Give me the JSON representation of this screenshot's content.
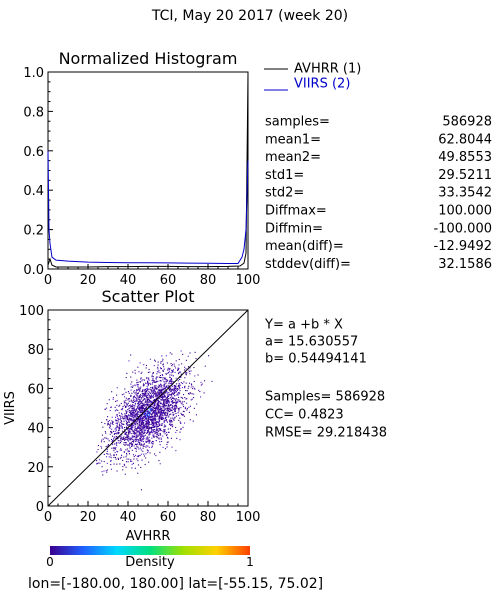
{
  "page_title": "TCI,  May 20 2017 (week 20)",
  "footer": {
    "lon_label": "lon=[",
    "lon_value": "-180.00, 180.00",
    "lat_label": "] lat=[",
    "lat_value": "-55.15, 75.02",
    "close": "]"
  },
  "colors": {
    "avhrr": "#000000",
    "viirs": "#0000cc",
    "frame": "#000000"
  },
  "stats": [
    {
      "label": "samples=",
      "value": "586928"
    },
    {
      "label": "mean1=",
      "value": "62.8044"
    },
    {
      "label": "mean2=",
      "value": "49.8553"
    },
    {
      "label": "std1=",
      "value": "29.5211"
    },
    {
      "label": "std2=",
      "value": "33.3542"
    },
    {
      "label": "Diffmax=",
      "value": "100.000"
    },
    {
      "label": "Diffmin=",
      "value": "-100.000"
    },
    {
      "label": "mean(diff)=",
      "value": "-12.9492"
    },
    {
      "label": "stddev(diff)=",
      "value": "32.1586"
    }
  ],
  "regression": {
    "equation": "Y= a +b * X",
    "a_text": "a= 15.630557",
    "b_text": "b= 0.54494141",
    "samples_text": "Samples= 586928",
    "cc_text": "CC=  0.4823",
    "rmse_text": "RMSE= 29.218438"
  },
  "colorbar": {
    "label": "Density",
    "min_label": "0",
    "max_label": "1",
    "stops": [
      "#3a0090",
      "#2060ff",
      "#00d8ff",
      "#00e080",
      "#a0e000",
      "#ffd000",
      "#ff4000"
    ]
  },
  "chart_data": [
    {
      "type": "line",
      "title": "Normalized Histogram",
      "xlim": [
        0,
        100
      ],
      "ylim": [
        0,
        1.0
      ],
      "xticks": [
        "0",
        "20",
        "40",
        "60",
        "80",
        "100"
      ],
      "yticks": [
        "0.0",
        "0.2",
        "0.4",
        "0.6",
        "0.8",
        "1.0"
      ],
      "legend_position": "top-right",
      "series": [
        {
          "name": "AVHRR (1)",
          "color": "#000000",
          "x": [
            0,
            1,
            2,
            4,
            10,
            20,
            30,
            40,
            50,
            60,
            70,
            80,
            90,
            96,
            98,
            99,
            100
          ],
          "y": [
            0.02,
            0.05,
            0.02,
            0.01,
            0.01,
            0.01,
            0.012,
            0.012,
            0.013,
            0.013,
            0.012,
            0.012,
            0.013,
            0.015,
            0.03,
            0.08,
            1.0
          ]
        },
        {
          "name": "VIIRS (2)",
          "color": "#0000cc",
          "x": [
            0,
            0.5,
            1,
            2,
            4,
            10,
            20,
            30,
            40,
            50,
            60,
            70,
            80,
            90,
            95,
            97,
            98,
            99,
            100
          ],
          "y": [
            0.6,
            0.2,
            0.13,
            0.06,
            0.045,
            0.04,
            0.035,
            0.033,
            0.032,
            0.032,
            0.031,
            0.03,
            0.029,
            0.028,
            0.028,
            0.06,
            0.1,
            0.2,
            0.55
          ]
        }
      ]
    },
    {
      "type": "scatter",
      "title": "Scatter Plot",
      "xlabel": "AVHRR",
      "ylabel": "VIIRS",
      "xlim": [
        0,
        100
      ],
      "ylim": [
        0,
        100
      ],
      "xticks": [
        "0",
        "20",
        "40",
        "60",
        "80",
        "100"
      ],
      "yticks": [
        "0",
        "20",
        "40",
        "60",
        "80",
        "100"
      ],
      "diagonal": true,
      "cluster": {
        "center_x": 50,
        "center_y": 45,
        "spread_x": 10,
        "spread_y": 11,
        "range_x": [
          24,
          84
        ],
        "range_y": [
          8,
          80
        ]
      }
    }
  ]
}
